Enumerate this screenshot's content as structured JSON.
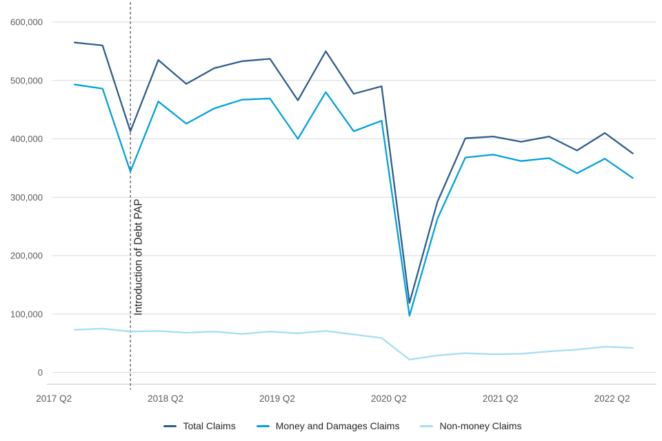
{
  "chart_data": {
    "type": "line",
    "title": "",
    "x_axis": {
      "tick_labels": [
        "2017 Q2",
        "2018 Q2",
        "2019 Q2",
        "2020 Q2",
        "2021 Q2",
        "2022 Q2"
      ],
      "quarters": [
        "2017 Q2",
        "2017 Q3",
        "2017 Q4",
        "2018 Q1",
        "2018 Q2",
        "2018 Q3",
        "2018 Q4",
        "2019 Q1",
        "2019 Q2",
        "2019 Q3",
        "2019 Q4",
        "2020 Q1",
        "2020 Q2",
        "2020 Q3",
        "2020 Q4",
        "2021 Q1",
        "2021 Q2",
        "2021 Q3",
        "2021 Q4",
        "2022 Q1",
        "2022 Q2"
      ]
    },
    "y_axis": {
      "tick_labels": [
        "0",
        "100,000",
        "200,000",
        "300,000",
        "400,000",
        "500,000",
        "600,000"
      ],
      "tick_values": [
        0,
        100000,
        200000,
        300000,
        400000,
        500000,
        600000
      ],
      "range": [
        0,
        634000
      ]
    },
    "series": [
      {
        "name": "Total Claims",
        "color": "#2F5C8A",
        "values": [
          565000,
          560000,
          413000,
          535000,
          494000,
          521000,
          533000,
          537000,
          466000,
          550000,
          477000,
          490000,
          119000,
          292000,
          401000,
          404000,
          395000,
          404000,
          380000,
          410000,
          375000
        ]
      },
      {
        "name": "Money and Damages Claims",
        "color": "#00A1DC",
        "values": [
          493000,
          486000,
          344000,
          464000,
          426000,
          452000,
          467000,
          469000,
          400000,
          480000,
          413000,
          431000,
          97000,
          263000,
          368000,
          373000,
          362000,
          367000,
          341000,
          366000,
          333000
        ]
      },
      {
        "name": "Non-money Claims",
        "color": "#A5DEF2",
        "values": [
          73000,
          75000,
          70000,
          71000,
          68000,
          70000,
          66000,
          70000,
          67000,
          71000,
          65000,
          59000,
          22000,
          29000,
          33000,
          31000,
          32000,
          36000,
          39000,
          44000,
          42000
        ]
      }
    ],
    "annotation": {
      "label": "Introduction of Debt PAP",
      "at_quarter": "2017 Q4",
      "line_style": "dashed",
      "line_color": "#595959",
      "text_color": "#262626"
    },
    "legend": {
      "position": "bottom"
    },
    "grid": "horizontal-only",
    "colors": {
      "gridline": "#d9d9d9",
      "axis_line": "#c6c6c6",
      "tick_text": "#595959"
    }
  }
}
